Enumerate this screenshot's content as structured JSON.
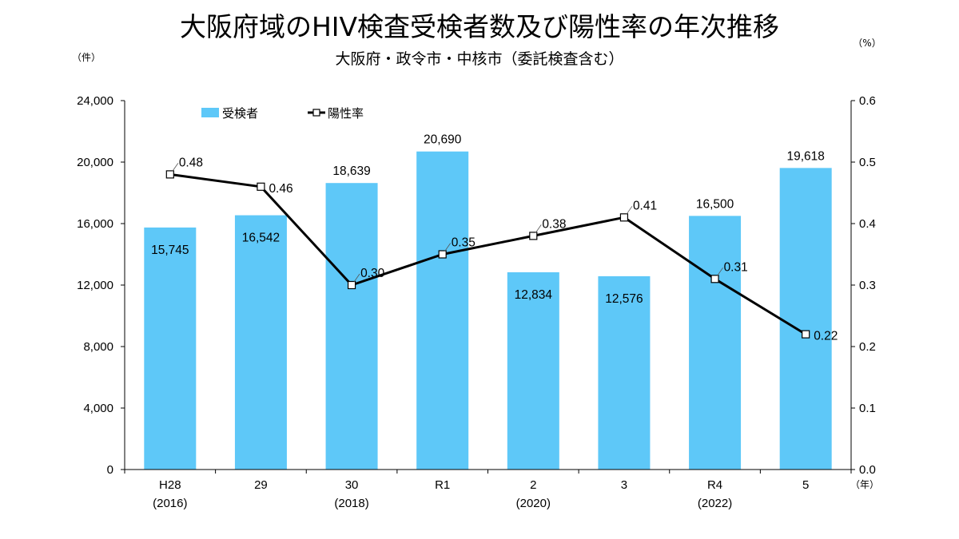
{
  "chart_data": {
    "type": "bar",
    "title": "大阪府域のHIV検査受検者数及び陽性率の年次推移",
    "subtitle": "大阪府・政令市・中核市（委託検査含む）",
    "y_left_unit": "（件）",
    "y_right_unit": "（%）",
    "x_unit": "（年）",
    "categories": [
      [
        "H28",
        "(2016)"
      ],
      [
        "29",
        ""
      ],
      [
        "30",
        "(2018)"
      ],
      [
        "R1",
        ""
      ],
      [
        "2",
        "(2020)"
      ],
      [
        "3",
        ""
      ],
      [
        "R4",
        "(2022)"
      ],
      [
        "5",
        ""
      ]
    ],
    "series": [
      {
        "name": "受検者",
        "type": "bar",
        "axis": "left",
        "color": "#5ec8f8",
        "values": [
          15745,
          16542,
          18639,
          20690,
          12834,
          12576,
          16500,
          19618
        ],
        "labels": [
          "15,745",
          "16,542",
          "18,639",
          "20,690",
          "12,834",
          "12,576",
          "16,500",
          "19,618"
        ],
        "label_placement": [
          "inside",
          "inside",
          "above",
          "above",
          "inside",
          "inside",
          "above",
          "above"
        ]
      },
      {
        "name": "陽性率",
        "type": "line",
        "axis": "right",
        "color": "#000000",
        "marker": "square-open",
        "values": [
          0.48,
          0.46,
          0.3,
          0.35,
          0.38,
          0.41,
          0.31,
          0.22
        ],
        "labels": [
          "0.48",
          "0.46",
          "0.30",
          "0.35",
          "0.38",
          "0.41",
          "0.31",
          "0.22"
        ]
      }
    ],
    "y_left": {
      "ylim": [
        0,
        24000
      ],
      "ticks": [
        0,
        4000,
        8000,
        12000,
        16000,
        20000,
        24000
      ],
      "tick_labels": [
        "0",
        "4,000",
        "8,000",
        "12,000",
        "16,000",
        "20,000",
        "24,000"
      ]
    },
    "y_right": {
      "ylim": [
        0,
        0.6
      ],
      "ticks": [
        0,
        0.1,
        0.2,
        0.3,
        0.4,
        0.5,
        0.6
      ],
      "tick_labels": [
        "0.0",
        "0.1",
        "0.2",
        "0.3",
        "0.4",
        "0.5",
        "0.6"
      ]
    },
    "grid": false,
    "legend_placement": "top-left"
  }
}
